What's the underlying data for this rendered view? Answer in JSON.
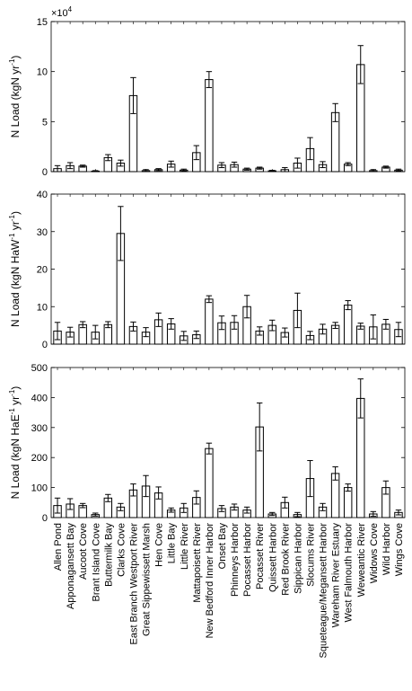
{
  "chart_data": [
    {
      "type": "bar",
      "categories": [
        "Allen Pond",
        "Apponagansett Bay",
        "Aucoot Cove",
        "Brant Island Cove",
        "Buttermilk Bay",
        "Clarks Cove",
        "East Branch Westport River",
        "Great Sippewissett Marsh",
        "Hen Cove",
        "Little Bay",
        "Little River",
        "Mattapoisett River",
        "New Bedford Inner Harbor",
        "Onset Bay",
        "Phinneys Harbor",
        "Pocasset Harbor",
        "Pocasset River",
        "Quissett Harbor",
        "Red Brook River",
        "Sippican Harbor",
        "Slocums River",
        "Squeteague/Megansett Harbor",
        "Wareham River Estuary",
        "West Falmouth Harbor",
        "Weweantic River",
        "Widows Cove",
        "Wild Harbor",
        "Wings Cove"
      ],
      "values": [
        0.3,
        0.6,
        0.55,
        0.05,
        1.4,
        0.85,
        7.6,
        0.1,
        0.2,
        0.75,
        0.15,
        1.9,
        9.2,
        0.65,
        0.7,
        0.25,
        0.35,
        0.08,
        0.2,
        0.85,
        2.3,
        0.7,
        5.9,
        0.75,
        10.7,
        0.1,
        0.45,
        0.15
      ],
      "errors": [
        0.3,
        0.3,
        0.1,
        0.05,
        0.3,
        0.3,
        1.8,
        0.1,
        0.1,
        0.3,
        0.1,
        0.7,
        0.8,
        0.25,
        0.25,
        0.1,
        0.1,
        0.05,
        0.2,
        0.5,
        1.1,
        0.3,
        0.9,
        0.15,
        1.9,
        0.1,
        0.1,
        0.1
      ],
      "ylim": [
        0,
        15
      ],
      "yticks": [
        "0",
        "5",
        "10",
        "15"
      ],
      "ytick_values": [
        0,
        5,
        10,
        15
      ],
      "multiplier_base": "×10",
      "multiplier_exp": "4",
      "ylabel_main": "N Load (kgN yr",
      "ylabel_sup": "-1",
      "ylabel_end": ")"
    },
    {
      "type": "bar",
      "categories": [
        "Allen Pond",
        "Apponagansett Bay",
        "Aucoot Cove",
        "Brant Island Cove",
        "Buttermilk Bay",
        "Clarks Cove",
        "East Branch Westport River",
        "Great Sippewissett Marsh",
        "Hen Cove",
        "Little Bay",
        "Little River",
        "Mattapoisett River",
        "New Bedford Inner Harbor",
        "Onset Bay",
        "Phinneys Harbor",
        "Pocasset Harbor",
        "Pocasset River",
        "Quissett Harbor",
        "Red Brook River",
        "Sippican Harbor",
        "Slocums River",
        "Squeteague/Megansett Harbor",
        "Wareham River Estuary",
        "West Falmouth Harbor",
        "Weweantic River",
        "Widows Cove",
        "Wild Harbor",
        "Wings Cove"
      ],
      "values": [
        3.5,
        3.2,
        5.2,
        3.2,
        5.2,
        29.5,
        4.7,
        3.2,
        6.5,
        5.4,
        2.2,
        2.5,
        12.0,
        5.7,
        5.8,
        10.0,
        3.5,
        5.0,
        3.1,
        9.0,
        2.3,
        4.0,
        5.0,
        10.4,
        4.8,
        4.6,
        5.3,
        3.9
      ],
      "errors": [
        2.3,
        1.3,
        0.8,
        1.8,
        0.8,
        7.2,
        1.2,
        1.2,
        1.8,
        1.4,
        1.2,
        1.0,
        0.9,
        1.8,
        1.8,
        3.0,
        1.1,
        1.4,
        1.2,
        4.6,
        1.1,
        1.3,
        0.8,
        1.2,
        0.8,
        3.2,
        1.3,
        1.9
      ],
      "ylim": [
        0,
        40
      ],
      "yticks": [
        "0",
        "10",
        "20",
        "30",
        "40"
      ],
      "ytick_values": [
        0,
        10,
        20,
        30,
        40
      ],
      "ylabel_main": "N Load (kgN HaW",
      "ylabel_sup": "-1",
      "ylabel_mid": " yr",
      "ylabel_sup2": "-1",
      "ylabel_end": ")"
    },
    {
      "type": "bar",
      "categories": [
        "Allen Pond",
        "Apponagansett Bay",
        "Aucoot Cove",
        "Brant Island Cove",
        "Buttermilk Bay",
        "Clarks Cove",
        "East Branch Westport River",
        "Great Sippewissett Marsh",
        "Hen Cove",
        "Little Bay",
        "Little River",
        "Mattapoisett River",
        "New Bedford Inner Harbor",
        "Onset Bay",
        "Phinneys Harbor",
        "Pocasset Harbor",
        "Pocasset River",
        "Quissett Harbor",
        "Red Brook River",
        "Sippican Harbor",
        "Slocums River",
        "Squeteague/Megansett Harbor",
        "Wareham River Estuary",
        "West Falmouth Harbor",
        "Weweantic River",
        "Widows Cove",
        "Wild Harbor",
        "Wings Cove"
      ],
      "values": [
        40,
        45,
        40,
        10,
        65,
        35,
        92,
        105,
        82,
        25,
        32,
        67,
        230,
        30,
        35,
        25,
        302,
        12,
        50,
        10,
        130,
        35,
        147,
        100,
        397,
        12,
        100,
        17
      ],
      "errors": [
        25,
        18,
        7,
        5,
        12,
        12,
        20,
        35,
        20,
        7,
        15,
        22,
        18,
        10,
        10,
        10,
        80,
        5,
        18,
        7,
        60,
        12,
        22,
        12,
        65,
        8,
        22,
        8
      ],
      "ylim": [
        0,
        500
      ],
      "yticks": [
        "0",
        "100",
        "200",
        "300",
        "400",
        "500"
      ],
      "ytick_values": [
        0,
        100,
        200,
        300,
        400,
        500
      ],
      "ylabel_main": "N Load (kgN HaE",
      "ylabel_sup": "-1",
      "ylabel_mid": " yr",
      "ylabel_sup2": "-1",
      "ylabel_end": ")"
    }
  ]
}
